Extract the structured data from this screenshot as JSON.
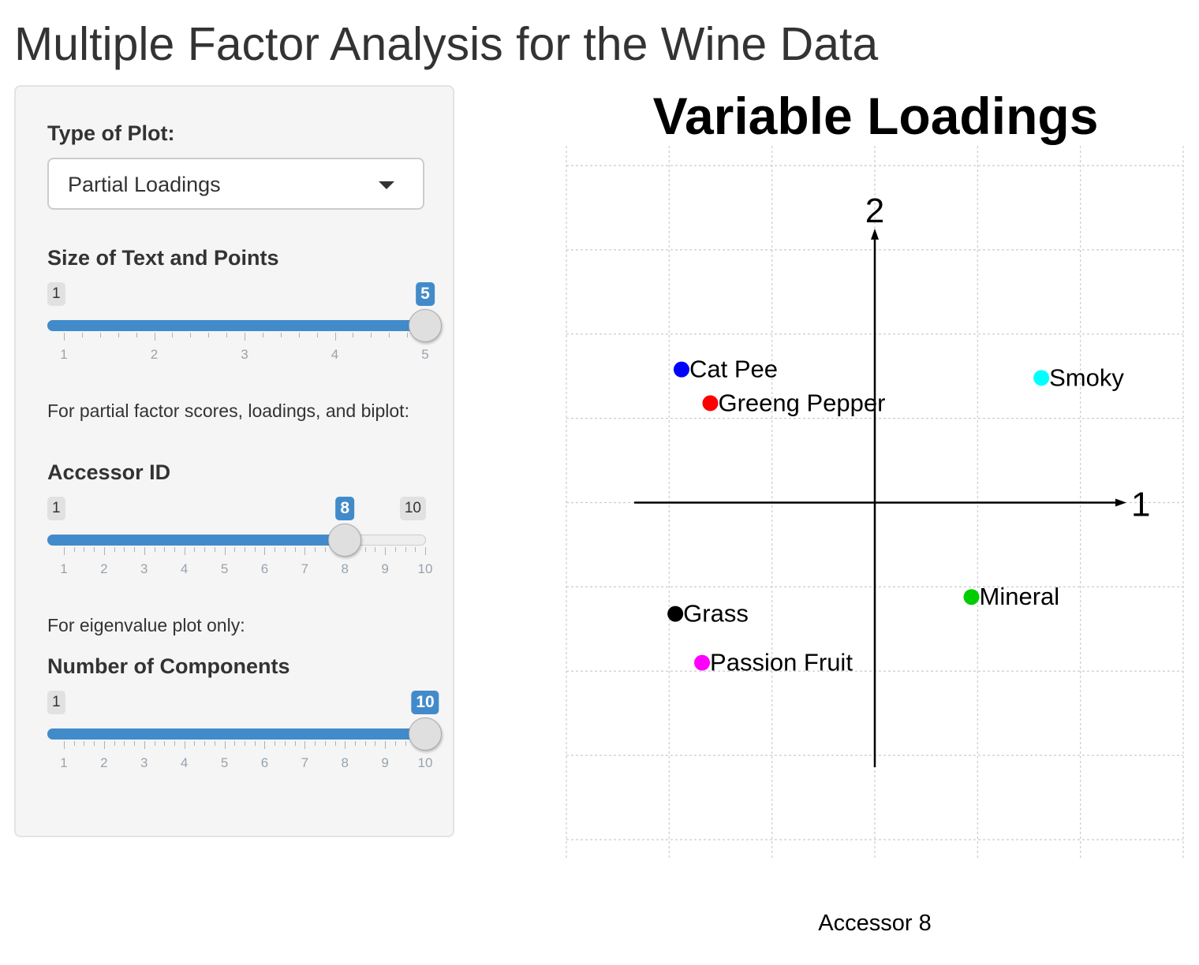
{
  "app_title": "Multiple Factor Analysis for the Wine Data",
  "sidebar": {
    "plot_type": {
      "label": "Type of Plot:",
      "selected": "Partial Loadings"
    },
    "size_slider": {
      "label": "Size of Text and Points",
      "min": 1,
      "max": 5,
      "value": 5,
      "step": 1,
      "ticks": [
        "1",
        "2",
        "3",
        "4",
        "5"
      ]
    },
    "partial_help": "For partial factor scores, loadings, and biplot:",
    "accessor_slider": {
      "label": "Accessor ID",
      "min": 1,
      "max": 10,
      "value": 8,
      "step": 1,
      "ticks": [
        "1",
        "2",
        "3",
        "4",
        "5",
        "6",
        "7",
        "8",
        "9",
        "10"
      ]
    },
    "eigen_help": "For eigenvalue plot only:",
    "components_slider": {
      "label": "Number of Components",
      "min": 1,
      "max": 10,
      "value": 10,
      "step": 1,
      "ticks": [
        "1",
        "2",
        "3",
        "4",
        "5",
        "6",
        "7",
        "8",
        "9",
        "10"
      ]
    }
  },
  "colors": {
    "slider_accent": "#428bca",
    "panel_background": "#f5f5f5"
  },
  "chart_data": {
    "type": "scatter",
    "title": "Variable Loadings",
    "xlabel": "Accessor 8",
    "axis_labels": {
      "x": "1",
      "y": "2"
    },
    "xlim": [
      -1.5,
      1.5
    ],
    "ylim": [
      -2.0,
      2.0
    ],
    "grid": true,
    "points": [
      {
        "label": "Cat Pee",
        "x": -0.94,
        "y": 0.79,
        "color": "#0000ff"
      },
      {
        "label": "Greeng Pepper",
        "x": -0.8,
        "y": 0.59,
        "color": "#ff0000"
      },
      {
        "label": "Smoky",
        "x": 0.81,
        "y": 0.74,
        "color": "#00ffff"
      },
      {
        "label": "Mineral",
        "x": 0.47,
        "y": -0.56,
        "color": "#00cd00"
      },
      {
        "label": "Grass",
        "x": -0.97,
        "y": -0.66,
        "color": "#000000"
      },
      {
        "label": "Passion Fruit",
        "x": -0.84,
        "y": -0.95,
        "color": "#ff00ff"
      }
    ]
  }
}
